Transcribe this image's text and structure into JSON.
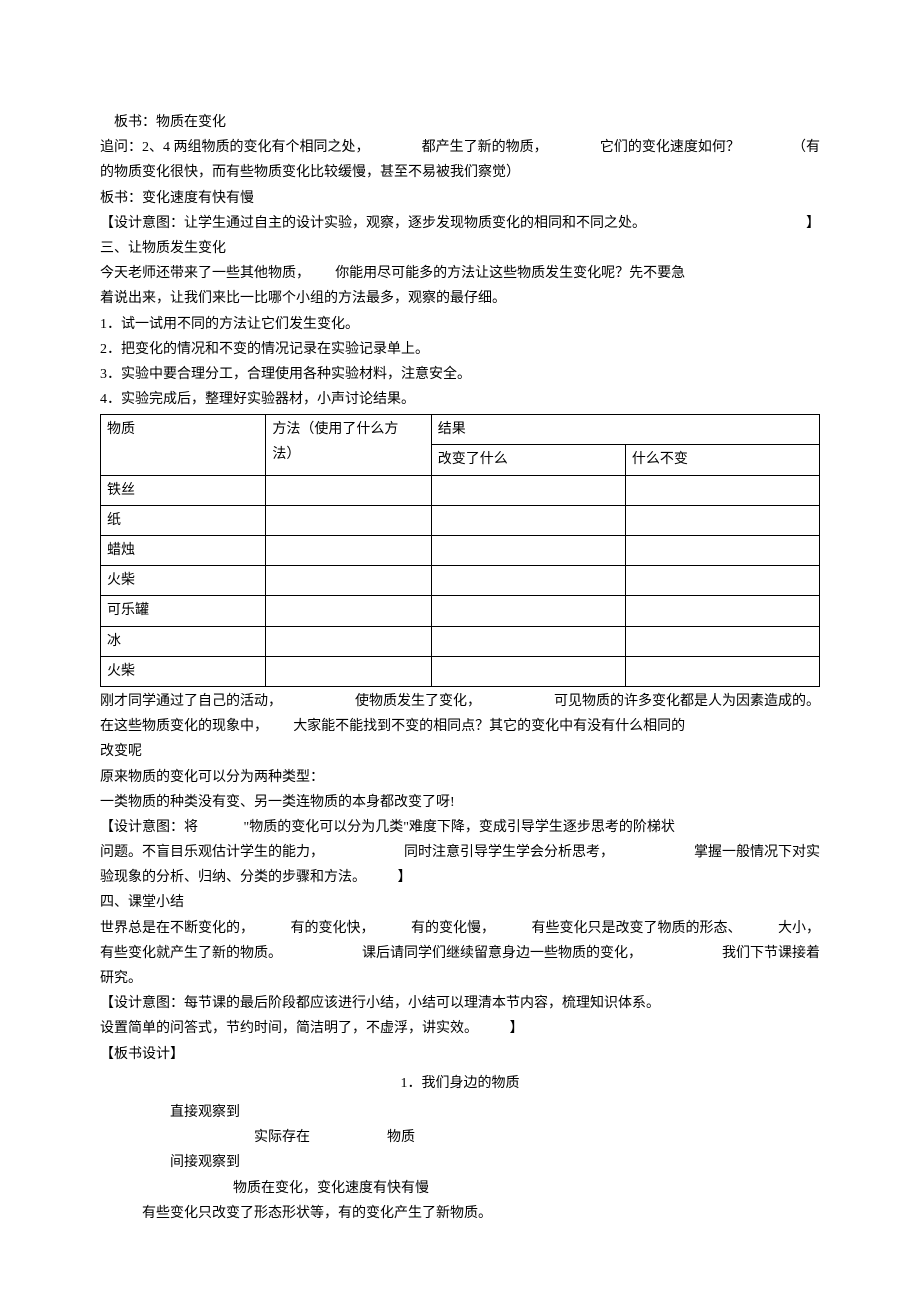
{
  "p1": "板书：物质在变化",
  "p2": {
    "a": "追问：2、4 两组物质的变化有个相同之处，",
    "b": "都产生了新的物质，",
    "c": "它们的变化速度如何？",
    "d": "（有"
  },
  "p2_2": "的物质变化很快，而有些物质变化比较缓慢，甚至不易被我们察觉）",
  "p3": "板书：变化速度有快有慢",
  "p4": {
    "a": "【设计意图：让学生通过自主的设计实验，观察，逐步发现物质变化的相同和不同之处。",
    "b": "】"
  },
  "p5": "三、让物质发生变化",
  "p6": {
    "a": "今天老师还带来了一些其他物质，",
    "b": "你能用尽可能多的方法让这些物质发生变化呢？先不要急"
  },
  "p6_2": "着说出来，让我们来比一比哪个小组的方法最多，观察的最仔细。",
  "li1": "1．试一试用不同的方法让它们发生变化。",
  "li2": "2．把变化的情况和不变的情况记录在实验记录单上。",
  "li3": "3．实验中要合理分工，合理使用各种实验材料，注意安全。",
  "li4": "4．实验完成后，整理好实验器材，小声讨论结果。",
  "table": {
    "h1": "物质",
    "h2a": "方法（使用了什么方",
    "h2b": "法）",
    "h3": "结果",
    "h3a": "改变了什么",
    "h3b": "什么不变",
    "rows": [
      "铁丝",
      "纸",
      "蜡烛",
      "火柴",
      "可乐罐",
      "冰",
      "火柴"
    ]
  },
  "p7": {
    "a": "刚才同学通过了自己的活动，",
    "b": "使物质发生了变化，",
    "c": "可见物质的许多变化都是人为因素造成的。"
  },
  "p8": {
    "a": "在这些物质变化的现象中，",
    "b": "大家能不能找到不变的相同点？其它的变化中有没有什么相同的"
  },
  "p8_2": "改变呢",
  "p9": "原来物质的变化可以分为两种类型：",
  "p10": "一类物质的种类没有变、另一类连物质的本身都改变了呀!",
  "p11": {
    "a": "【设计意图：将",
    "b": "\"物质的变化可以分为几类\"难度下降，变成引导学生逐步思考的阶梯状"
  },
  "p11_2": {
    "a": "问题。不盲目乐观估计学生的能力，",
    "b": "同时注意引导学生学会分析思考，",
    "c": "掌握一般情况下对实"
  },
  "p11_3": {
    "a": "验现象的分析、归纳、分类的步骤和方法。",
    "b": "】"
  },
  "p12": "四、课堂小结",
  "p13": {
    "a": "世界总是在不断变化的，",
    "b": "有的变化快，",
    "c": "有的变化慢，",
    "d": "有些变化只是改变了物质的形态、",
    "e": "大小，"
  },
  "p13_2": {
    "a": "有些变化就产生了新的物质。",
    "b": "课后请同学们继续留意身边一些物质的变化，",
    "c": "我们下节课接着"
  },
  "p13_3": "研究。",
  "p14": "【设计意图：每节课的最后阶段都应该进行小结，小结可以理清本节内容，梳理知识体系。",
  "p14_2": {
    "a": "设置简单的问答式，节约时间，简洁明了，不虚浮，讲实效。",
    "b": "】"
  },
  "p15": "【板书设计】",
  "bd_title": "1．我们身边的物质",
  "bd1": "直接观察到",
  "bd2a": "实际存在",
  "bd2b": "物质",
  "bd3": "间接观察到",
  "bd4": "物质在变化，变化速度有快有慢",
  "bd5": "有些变化只改变了形态形状等，有的变化产生了新物质。"
}
